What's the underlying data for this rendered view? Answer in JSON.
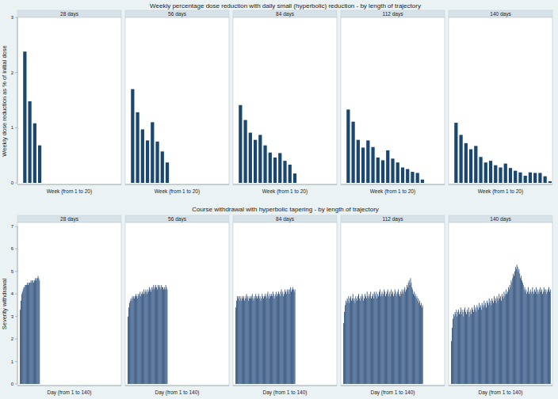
{
  "chart_data": [
    {
      "type": "bar",
      "title": "Weekly percentage dose reduction with daily small (hyperbolic) reduction - by length of trajectory",
      "y_label": "Weekly dose reduction as % of initial dose",
      "x_label": "Week (from 1 to 20)",
      "color": "#1a476f",
      "xlim": [
        -0.5,
        20.5
      ],
      "ylim": [
        0,
        3
      ],
      "yticks": [
        0,
        1,
        2,
        3
      ],
      "tick_labels": "y",
      "grid": false,
      "panels": [
        {
          "title": "28 days",
          "x": [
            1,
            2,
            3,
            4
          ],
          "values": [
            2.38,
            1.48,
            1.08,
            0.68
          ]
        },
        {
          "title": "56 days",
          "x": [
            1,
            2,
            3,
            4,
            5,
            6,
            7,
            8
          ],
          "values": [
            1.7,
            1.28,
            0.97,
            0.77,
            1.1,
            0.75,
            0.57,
            0.37
          ]
        },
        {
          "title": "84 days",
          "x": [
            1,
            2,
            3,
            4,
            5,
            6,
            7,
            8,
            9,
            10,
            11,
            12
          ],
          "values": [
            1.41,
            1.14,
            0.91,
            0.78,
            0.87,
            0.68,
            0.55,
            0.46,
            0.54,
            0.4,
            0.33,
            0.17
          ]
        },
        {
          "title": "112 days",
          "x": [
            1,
            2,
            3,
            4,
            5,
            6,
            7,
            8,
            9,
            10,
            11,
            12,
            13,
            14,
            15,
            16
          ],
          "values": [
            1.33,
            1.11,
            0.78,
            0.64,
            0.77,
            0.65,
            0.46,
            0.41,
            0.59,
            0.44,
            0.37,
            0.28,
            0.25,
            0.2,
            0.18,
            0.06
          ]
        },
        {
          "title": "140 days",
          "x": [
            1,
            2,
            3,
            4,
            5,
            6,
            7,
            8,
            9,
            10,
            11,
            12,
            13,
            14,
            15,
            16,
            17,
            18,
            19,
            20
          ],
          "values": [
            1.09,
            0.87,
            0.72,
            0.61,
            0.67,
            0.47,
            0.37,
            0.4,
            0.32,
            0.28,
            0.35,
            0.27,
            0.22,
            0.19,
            0.13,
            0.19,
            0.18,
            0.18,
            0.12,
            0.03
          ]
        }
      ]
    },
    {
      "type": "bar",
      "title": "Course withdrawal with hyperbolic tapering - by length of trajectory",
      "y_label": "Severity withdrawal",
      "x_label": "Day (from 1 to 140)",
      "color": "#2c4f7c",
      "xlim": [
        -3,
        143
      ],
      "ylim": [
        0,
        7
      ],
      "yticks": [
        0,
        1,
        2,
        3,
        4,
        5,
        6,
        7
      ],
      "tick_labels": "y",
      "grid": false,
      "panels": [
        {
          "title": "28 days",
          "x": [
            1,
            2,
            3,
            4,
            5,
            6,
            7,
            8,
            9,
            10,
            11,
            12,
            13,
            14,
            15,
            16,
            17,
            18,
            19,
            20,
            21,
            22,
            23,
            24,
            25,
            26,
            27,
            28
          ],
          "values": [
            3.3,
            3.7,
            4.0,
            4.1,
            4.2,
            4.3,
            4.3,
            4.4,
            4.4,
            4.4,
            4.5,
            4.4,
            4.5,
            4.5,
            4.5,
            4.6,
            4.5,
            4.6,
            4.6,
            4.5,
            4.6,
            4.7,
            4.6,
            4.7,
            4.7,
            4.8,
            4.7,
            4.6
          ]
        },
        {
          "title": "56 days",
          "x": [
            1,
            2,
            3,
            4,
            5,
            6,
            7,
            8,
            9,
            10,
            11,
            12,
            13,
            14,
            15,
            16,
            17,
            18,
            19,
            20,
            21,
            22,
            23,
            24,
            25,
            26,
            27,
            28,
            29,
            30,
            31,
            32,
            33,
            34,
            35,
            36,
            37,
            38,
            39,
            40,
            41,
            42,
            43,
            44,
            45,
            46,
            47,
            48,
            49,
            50,
            51,
            52,
            53,
            54,
            55,
            56
          ],
          "values": [
            3.0,
            3.4,
            3.6,
            3.7,
            3.8,
            3.7,
            3.9,
            3.8,
            3.9,
            3.8,
            3.9,
            4.0,
            3.9,
            3.8,
            4.0,
            3.9,
            4.0,
            4.1,
            3.9,
            4.0,
            4.1,
            4.0,
            4.2,
            4.0,
            4.1,
            4.2,
            4.1,
            4.0,
            4.2,
            4.1,
            4.3,
            4.2,
            4.1,
            4.3,
            4.2,
            4.3,
            4.4,
            4.2,
            4.3,
            4.4,
            4.3,
            4.2,
            4.4,
            4.3,
            4.4,
            4.3,
            4.2,
            4.4,
            4.3,
            4.3,
            4.2,
            4.3,
            4.2,
            4.4,
            4.3,
            4.2
          ]
        },
        {
          "title": "84 days",
          "x": [
            1,
            2,
            3,
            4,
            5,
            6,
            7,
            8,
            9,
            10,
            11,
            12,
            13,
            14,
            15,
            16,
            17,
            18,
            19,
            20,
            21,
            22,
            23,
            24,
            25,
            26,
            27,
            28,
            29,
            30,
            31,
            32,
            33,
            34,
            35,
            36,
            37,
            38,
            39,
            40,
            41,
            42,
            43,
            44,
            45,
            46,
            47,
            48,
            49,
            50,
            51,
            52,
            53,
            54,
            55,
            56,
            57,
            58,
            59,
            60,
            61,
            62,
            63,
            64,
            65,
            66,
            67,
            68,
            69,
            70,
            71,
            72,
            73,
            74,
            75,
            76,
            77,
            78,
            79,
            80,
            81,
            82,
            83,
            84
          ],
          "values": [
            3.4,
            3.7,
            3.9,
            3.8,
            3.9,
            3.7,
            3.9,
            3.8,
            3.7,
            3.9,
            3.8,
            3.9,
            3.7,
            3.8,
            3.9,
            4.0,
            3.8,
            3.9,
            3.7,
            3.8,
            3.9,
            3.8,
            3.9,
            4.0,
            3.8,
            3.7,
            3.9,
            3.8,
            4.0,
            3.9,
            3.8,
            3.9,
            4.0,
            3.8,
            3.9,
            3.7,
            3.8,
            4.0,
            3.9,
            3.8,
            3.9,
            4.0,
            3.9,
            3.8,
            4.0,
            4.1,
            3.9,
            3.8,
            4.0,
            3.9,
            4.0,
            3.9,
            4.1,
            4.0,
            3.8,
            3.9,
            4.0,
            4.1,
            3.9,
            4.0,
            4.1,
            4.0,
            3.9,
            4.1,
            4.2,
            4.0,
            4.1,
            3.9,
            4.0,
            4.2,
            4.1,
            4.0,
            4.2,
            4.1,
            4.2,
            4.0,
            4.2,
            4.3,
            4.1,
            4.2,
            4.3,
            4.2,
            4.1,
            4.2
          ]
        },
        {
          "title": "112 days",
          "x": [
            1,
            2,
            3,
            4,
            5,
            6,
            7,
            8,
            9,
            10,
            11,
            12,
            13,
            14,
            15,
            16,
            17,
            18,
            19,
            20,
            21,
            22,
            23,
            24,
            25,
            26,
            27,
            28,
            29,
            30,
            31,
            32,
            33,
            34,
            35,
            36,
            37,
            38,
            39,
            40,
            41,
            42,
            43,
            44,
            45,
            46,
            47,
            48,
            49,
            50,
            51,
            52,
            53,
            54,
            55,
            56,
            57,
            58,
            59,
            60,
            61,
            62,
            63,
            64,
            65,
            66,
            67,
            68,
            69,
            70,
            71,
            72,
            73,
            74,
            75,
            76,
            77,
            78,
            79,
            80,
            81,
            82,
            83,
            84,
            85,
            86,
            87,
            88,
            89,
            90,
            91,
            92,
            93,
            94,
            95,
            96,
            97,
            98,
            99,
            100,
            101,
            102,
            103,
            104,
            105,
            106,
            107,
            108,
            109,
            110,
            111,
            112
          ],
          "values": [
            2.7,
            3.2,
            3.5,
            3.7,
            3.6,
            3.8,
            3.7,
            3.9,
            3.6,
            3.8,
            3.9,
            3.7,
            3.8,
            4.0,
            3.7,
            3.8,
            3.6,
            3.9,
            3.8,
            3.7,
            3.9,
            4.0,
            3.8,
            3.7,
            3.9,
            3.8,
            4.0,
            3.9,
            3.7,
            3.8,
            4.0,
            3.9,
            3.8,
            4.1,
            3.9,
            3.8,
            4.0,
            3.9,
            4.1,
            3.8,
            3.9,
            4.0,
            3.8,
            4.1,
            4.0,
            3.9,
            4.1,
            3.8,
            4.0,
            3.9,
            4.1,
            4.2,
            3.9,
            4.0,
            4.1,
            3.9,
            4.0,
            4.2,
            4.1,
            3.9,
            4.0,
            4.1,
            4.2,
            3.9,
            4.0,
            4.1,
            3.9,
            4.2,
            4.0,
            4.1,
            3.9,
            4.0,
            4.2,
            4.1,
            3.9,
            4.0,
            4.1,
            4.2,
            4.0,
            3.9,
            4.1,
            4.0,
            4.2,
            4.1,
            4.0,
            4.2,
            4.3,
            4.1,
            4.2,
            4.4,
            4.3,
            4.5,
            4.6,
            4.4,
            4.7,
            4.5,
            4.3,
            4.2,
            4.0,
            4.1,
            3.9,
            4.0,
            3.8,
            3.9,
            3.7,
            3.8,
            3.6,
            3.7,
            3.5,
            3.6,
            3.4,
            3.5
          ]
        },
        {
          "title": "140 days",
          "x": [
            1,
            2,
            3,
            4,
            5,
            6,
            7,
            8,
            9,
            10,
            11,
            12,
            13,
            14,
            15,
            16,
            17,
            18,
            19,
            20,
            21,
            22,
            23,
            24,
            25,
            26,
            27,
            28,
            29,
            30,
            31,
            32,
            33,
            34,
            35,
            36,
            37,
            38,
            39,
            40,
            41,
            42,
            43,
            44,
            45,
            46,
            47,
            48,
            49,
            50,
            51,
            52,
            53,
            54,
            55,
            56,
            57,
            58,
            59,
            60,
            61,
            62,
            63,
            64,
            65,
            66,
            67,
            68,
            69,
            70,
            71,
            72,
            73,
            74,
            75,
            76,
            77,
            78,
            79,
            80,
            81,
            82,
            83,
            84,
            85,
            86,
            87,
            88,
            89,
            90,
            91,
            92,
            93,
            94,
            95,
            96,
            97,
            98,
            99,
            100,
            101,
            102,
            103,
            104,
            105,
            106,
            107,
            108,
            109,
            110,
            111,
            112,
            113,
            114,
            115,
            116,
            117,
            118,
            119,
            120,
            121,
            122,
            123,
            124,
            125,
            126,
            127,
            128,
            129,
            130,
            131,
            132,
            133,
            134,
            135,
            136,
            137,
            138,
            139,
            140
          ],
          "values": [
            1.9,
            2.5,
            2.9,
            3.1,
            3.0,
            3.2,
            3.1,
            3.3,
            3.0,
            3.2,
            3.3,
            3.1,
            3.2,
            3.4,
            3.1,
            3.3,
            3.2,
            3.0,
            3.3,
            3.4,
            3.2,
            3.1,
            3.3,
            3.2,
            3.4,
            3.0,
            3.2,
            3.3,
            3.1,
            3.4,
            3.3,
            3.2,
            3.5,
            3.3,
            3.4,
            3.2,
            3.5,
            3.4,
            3.3,
            3.6,
            3.4,
            3.5,
            3.3,
            3.6,
            3.5,
            3.4,
            3.7,
            3.5,
            3.6,
            3.4,
            3.7,
            3.6,
            3.5,
            3.8,
            3.6,
            3.7,
            3.5,
            3.8,
            3.7,
            3.6,
            3.9,
            3.7,
            3.8,
            3.6,
            3.9,
            3.8,
            3.7,
            4.0,
            3.8,
            3.9,
            3.7,
            4.0,
            3.9,
            3.8,
            4.1,
            3.9,
            4.0,
            4.2,
            4.0,
            4.1,
            4.3,
            4.2,
            4.4,
            4.3,
            4.6,
            4.5,
            4.7,
            4.9,
            4.8,
            5.0,
            5.2,
            5.1,
            5.3,
            5.2,
            5.0,
            5.1,
            4.9,
            4.7,
            4.8,
            4.6,
            4.5,
            4.4,
            4.2,
            4.3,
            4.1,
            4.2,
            4.0,
            4.1,
            4.3,
            4.0,
            4.1,
            4.2,
            4.0,
            4.1,
            4.3,
            4.1,
            4.0,
            4.2,
            4.1,
            4.3,
            4.0,
            4.2,
            4.1,
            4.0,
            4.2,
            4.3,
            4.1,
            4.2,
            4.0,
            4.1,
            4.3,
            4.2,
            4.1,
            4.2,
            4.0,
            4.1,
            4.2,
            4.3,
            4.1,
            4.2
          ]
        }
      ]
    }
  ]
}
